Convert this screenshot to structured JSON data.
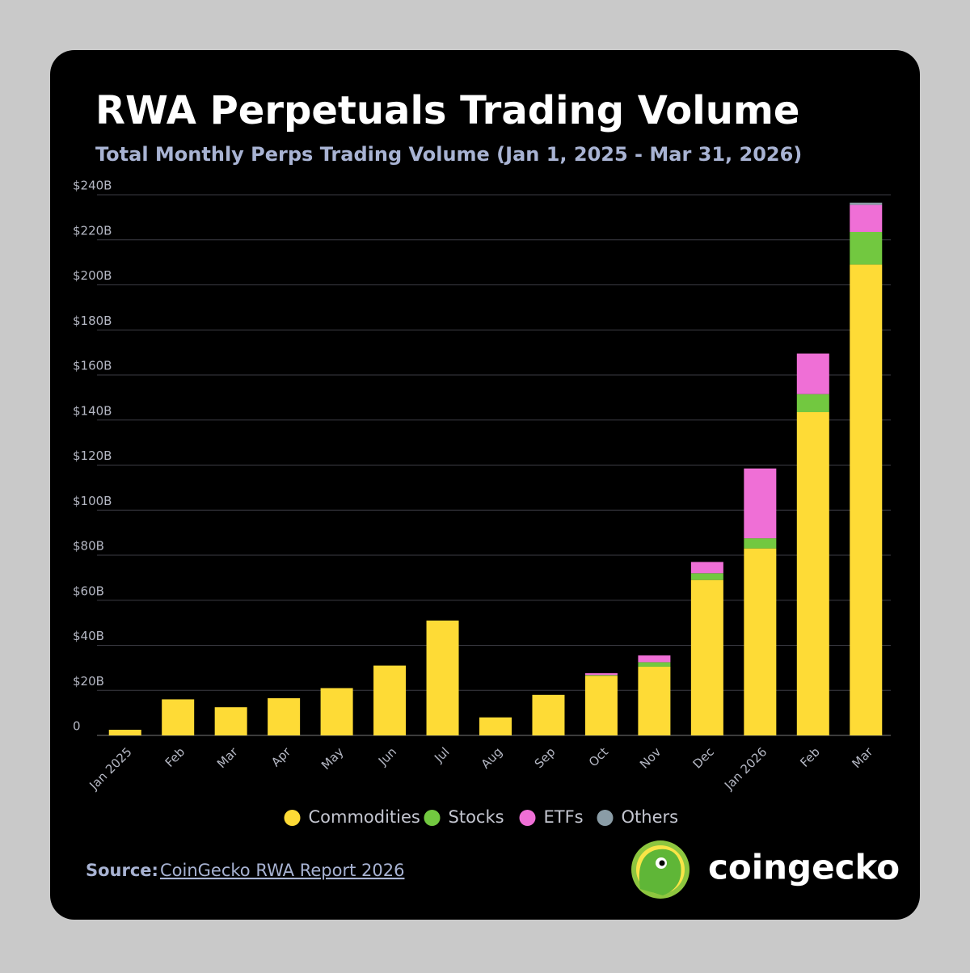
{
  "chart_data": {
    "type": "stacked-bar",
    "title": "RWA Perpetuals Trading Volume",
    "subtitle": "Total Monthly Perps Trading Volume (Jan 1, 2025 - Mar 31, 2026)",
    "categories": [
      "Jan 2025",
      "Feb",
      "Mar",
      "Apr",
      "May",
      "Jun",
      "Jul",
      "Aug",
      "Sep",
      "Oct",
      "Nov",
      "Dec",
      "Jan 2026",
      "Feb",
      "Mar"
    ],
    "series": [
      {
        "name": "Commodities",
        "color": "#fedb36",
        "values": [
          2.5,
          16,
          12.5,
          16.5,
          21,
          31,
          51,
          8,
          18,
          26.5,
          30.5,
          69,
          83,
          143.5,
          209
        ]
      },
      {
        "name": "Stocks",
        "color": "#72c840",
        "values": [
          0,
          0,
          0,
          0,
          0,
          0,
          0,
          0,
          0,
          0.3,
          2,
          3,
          4.5,
          8,
          14.5
        ]
      },
      {
        "name": "ETFs",
        "color": "#ef6fd6",
        "values": [
          0,
          0,
          0,
          0,
          0,
          0,
          0,
          0,
          0,
          0.8,
          3,
          5,
          31,
          18,
          12
        ]
      },
      {
        "name": "Others",
        "color": "#8a9ca6",
        "values": [
          0,
          0,
          0,
          0,
          0,
          0,
          0,
          0,
          0,
          0,
          0,
          0,
          0,
          0,
          1
        ]
      }
    ],
    "ylim": [
      0,
      240
    ],
    "yticks": [
      0,
      {
        "value": 20,
        "label": "$20B"
      },
      {
        "value": 40,
        "label": "$40B"
      },
      {
        "value": 60,
        "label": "$60B"
      },
      {
        "value": 80,
        "label": "$80B"
      },
      {
        "value": 100,
        "label": "$100B"
      },
      {
        "value": 120,
        "label": "$120B"
      },
      {
        "value": 140,
        "label": "$140B"
      },
      {
        "value": 160,
        "label": "$160B"
      },
      {
        "value": 180,
        "label": "$180B"
      },
      {
        "value": 200,
        "label": "$200B"
      },
      {
        "value": 220,
        "label": "$220B"
      },
      {
        "value": 240,
        "label": "$240B"
      }
    ],
    "grid": true
  },
  "footer": {
    "source_label": "Source:",
    "source_link": "CoinGecko RWA Report 2026",
    "brand": "coingecko"
  }
}
